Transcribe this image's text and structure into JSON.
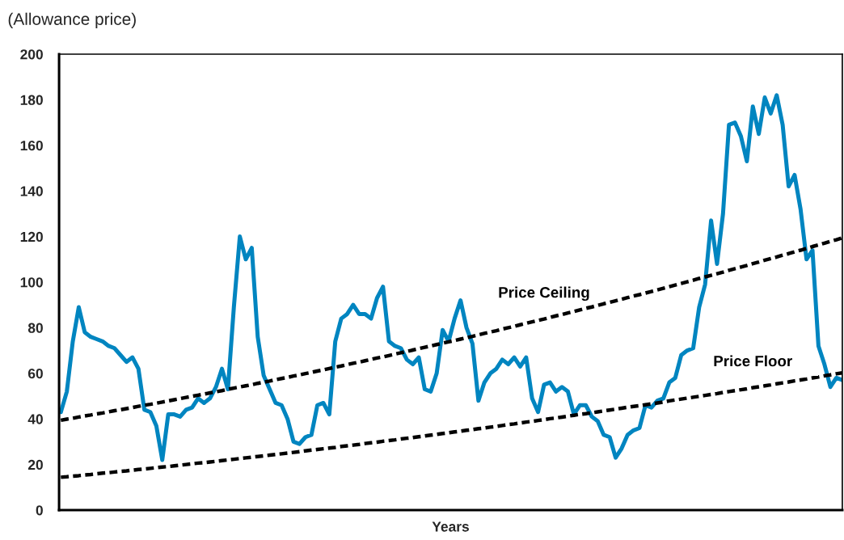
{
  "chart_data": {
    "type": "line",
    "xlabel": "Years",
    "ylabel": "(Allowance price)",
    "categories": [
      null,
      null,
      null,
      null,
      null,
      null,
      null,
      null,
      null,
      null,
      null,
      null,
      null,
      null,
      null,
      null,
      null,
      null,
      null,
      null,
      null,
      null,
      null,
      null,
      null,
      null,
      null,
      null,
      null,
      null,
      null,
      null,
      null,
      null,
      null,
      null,
      null,
      null,
      null,
      null,
      null,
      null,
      null,
      null,
      null,
      null,
      null,
      null,
      null,
      null,
      null,
      null,
      null,
      null,
      null,
      null,
      null,
      null,
      null,
      null,
      null,
      null,
      null,
      null,
      null,
      null,
      null,
      null,
      null,
      null,
      null,
      null,
      null,
      null,
      null,
      null,
      null,
      null,
      null,
      null,
      null,
      null,
      null,
      null,
      null,
      null,
      null,
      null,
      null,
      null,
      null,
      null,
      null,
      null,
      null,
      null,
      null,
      null,
      null,
      null,
      null,
      null,
      null,
      null,
      null,
      null,
      null,
      null,
      null,
      null,
      null,
      null,
      null,
      null,
      null,
      null,
      null,
      null,
      null,
      null,
      null,
      null,
      null,
      null,
      null,
      null,
      null,
      null,
      null,
      null,
      null,
      null
    ],
    "ylim": [
      0,
      200
    ],
    "yticks": [
      0,
      20,
      40,
      60,
      80,
      100,
      120,
      140,
      160,
      180,
      200
    ],
    "tick_labels": "y",
    "grid": false,
    "legend": false,
    "series": [
      {
        "color": "#0085c0",
        "line_style": "solid",
        "values": [
          43,
          52,
          74,
          89,
          78,
          76,
          75,
          74,
          72,
          71,
          68,
          65,
          67,
          62,
          44,
          43,
          37,
          22,
          42,
          42,
          41,
          44,
          45,
          49,
          47,
          49,
          54,
          62,
          53,
          89,
          120,
          110,
          115,
          76,
          59,
          53,
          47,
          46,
          40,
          30,
          29,
          32,
          33,
          46,
          47,
          42,
          74,
          84,
          86,
          90,
          86,
          86,
          84,
          93,
          98,
          74,
          72,
          71,
          66,
          64,
          67,
          53,
          52,
          60,
          79,
          74,
          84,
          92,
          80,
          73,
          48,
          56,
          60,
          62,
          66,
          64,
          67,
          63,
          67,
          49,
          43,
          55,
          56,
          52,
          54,
          52,
          42,
          46,
          46,
          41,
          39,
          33,
          32,
          23,
          27,
          33,
          35,
          36,
          46,
          45,
          48,
          49,
          56,
          58,
          68,
          70,
          71,
          89,
          99,
          127,
          108,
          130,
          169,
          170,
          164,
          153,
          177,
          165,
          181,
          174,
          182,
          169,
          142,
          147,
          132,
          110,
          114,
          72,
          64,
          54,
          58,
          57
        ]
      },
      {
        "name": "Price Ceiling",
        "color": "#000000",
        "line_style": "dashed",
        "values": [
          39.4,
          39.9,
          40.3,
          40.8,
          41.3,
          41.7,
          42.2,
          42.6,
          43.1,
          43.6,
          44.0,
          44.5,
          45.0,
          45.5,
          46.0,
          46.4,
          46.9,
          47.4,
          47.9,
          48.4,
          48.9,
          49.4,
          49.9,
          50.4,
          50.9,
          51.4,
          51.9,
          52.4,
          53.0,
          53.5,
          54.0,
          54.5,
          55.0,
          55.6,
          56.1,
          56.6,
          57.2,
          57.7,
          58.2,
          58.8,
          59.3,
          59.9,
          60.4,
          61.0,
          61.5,
          62.1,
          62.7,
          63.2,
          63.8,
          64.4,
          64.9,
          65.5,
          66.1,
          66.7,
          67.2,
          67.8,
          68.4,
          69.0,
          69.6,
          70.2,
          70.8,
          71.4,
          72.0,
          72.6,
          73.2,
          73.8,
          74.4,
          75.0,
          75.6,
          76.2,
          76.9,
          77.5,
          78.1,
          78.7,
          79.4,
          80.0,
          80.6,
          81.3,
          81.9,
          82.6,
          83.2,
          83.8,
          84.5,
          85.2,
          85.8,
          86.5,
          87.1,
          87.8,
          88.5,
          89.1,
          89.8,
          90.5,
          91.1,
          91.8,
          92.5,
          93.2,
          93.9,
          94.5,
          95.2,
          95.9,
          96.6,
          97.3,
          98.0,
          98.7,
          99.4,
          100.1,
          100.8,
          101.6,
          102.3,
          103.0,
          103.7,
          104.4,
          105.2,
          105.9,
          106.6,
          107.3,
          108.1,
          108.8,
          109.6,
          110.3,
          111.0,
          111.8,
          112.5,
          113.3,
          114.0,
          114.8,
          115.6,
          116.3,
          117.1,
          117.9,
          118.6,
          119.4
        ]
      },
      {
        "name": "Price Floor",
        "color": "#000000",
        "line_style": "dashed",
        "values": [
          14.4,
          14.6,
          14.9,
          15.1,
          15.4,
          15.6,
          15.9,
          16.2,
          16.4,
          16.7,
          17.0,
          17.2,
          17.5,
          17.8,
          18.0,
          18.3,
          18.6,
          18.9,
          19.1,
          19.4,
          19.7,
          20.0,
          20.3,
          20.6,
          20.8,
          21.1,
          21.4,
          21.7,
          22.0,
          22.3,
          22.6,
          22.9,
          23.2,
          23.5,
          23.8,
          24.1,
          24.4,
          24.7,
          25.0,
          25.3,
          25.6,
          26.0,
          26.3,
          26.6,
          26.9,
          27.2,
          27.5,
          27.9,
          28.2,
          28.5,
          28.8,
          29.2,
          29.5,
          29.8,
          30.2,
          30.5,
          30.8,
          31.2,
          31.5,
          31.8,
          32.2,
          32.5,
          32.9,
          33.2,
          33.6,
          33.9,
          34.3,
          34.6,
          35.0,
          35.3,
          35.7,
          36.0,
          36.4,
          36.7,
          37.1,
          37.5,
          37.8,
          38.2,
          38.6,
          38.9,
          39.3,
          39.7,
          40.1,
          40.4,
          40.8,
          41.2,
          41.6,
          42.0,
          42.3,
          42.7,
          43.1,
          43.5,
          43.9,
          44.3,
          44.7,
          45.1,
          45.5,
          45.8,
          46.2,
          46.6,
          47.0,
          47.4,
          47.9,
          48.3,
          48.7,
          49.1,
          49.5,
          49.9,
          50.3,
          50.7,
          51.1,
          51.6,
          52.0,
          52.4,
          52.8,
          53.2,
          53.7,
          54.1,
          54.5,
          54.9,
          55.4,
          55.8,
          56.2,
          56.7,
          57.1,
          57.5,
          58.0,
          58.4,
          58.9,
          59.3,
          59.8,
          60.2
        ]
      }
    ]
  }
}
